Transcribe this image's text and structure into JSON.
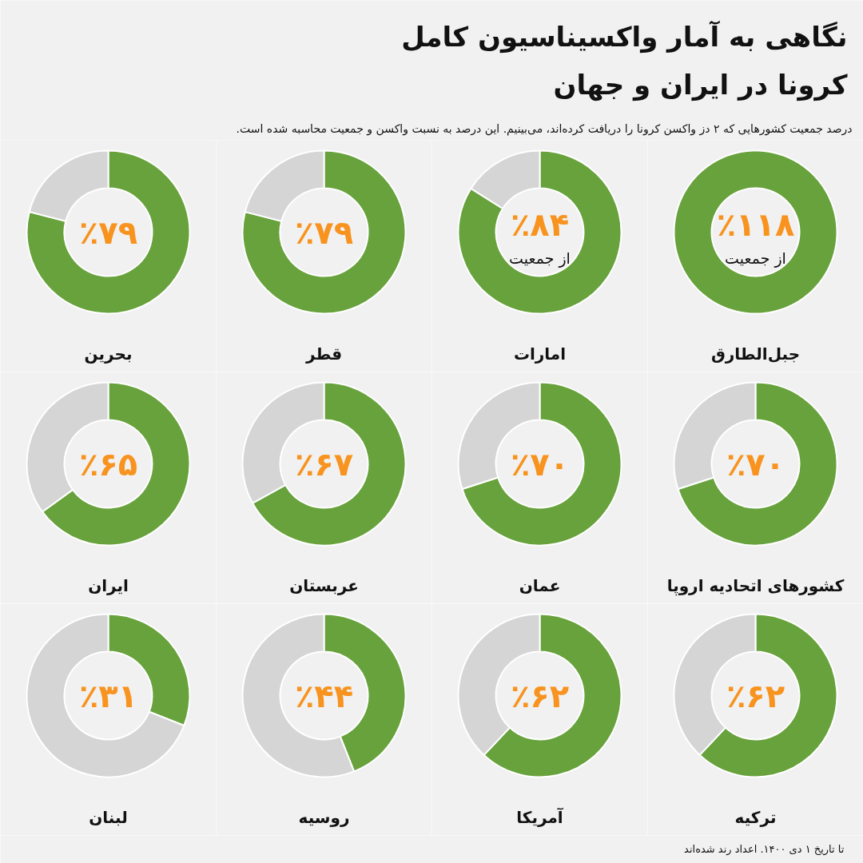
{
  "chart_data": [
    {
      "type": "other",
      "title": "نگاهی به آمار واکسیناسیون کامل\nکرونا در ایران و جهان",
      "subtitle": "درصد جمعیت کشورهایی که ۲ دز واکسن کرونا را دریافت کرده‌اند، می‌بینیم. این درصد به نسبت واکسن و جمعیت محاسبه شده است.",
      "annotations": [
        "تا تاریخ ۱ دی ۱۴۰۰.  اعداد رند شده‌اند"
      ]
    },
    {
      "type": "donut",
      "title": "بحرین",
      "categories": [
        null,
        null
      ],
      "values": [
        79,
        21
      ],
      "colors": [
        "#68a23c",
        "#d5d5d5"
      ],
      "value_labels": [
        "٪۷۹",
        null
      ]
    },
    {
      "type": "donut",
      "title": "قطر",
      "categories": [
        null,
        null
      ],
      "values": [
        79,
        21
      ],
      "colors": [
        "#68a23c",
        "#d5d5d5"
      ],
      "value_labels": [
        "٪۷۹",
        null
      ]
    },
    {
      "type": "donut",
      "title": "امارات",
      "categories": [
        null,
        null
      ],
      "values": [
        84,
        16
      ],
      "colors": [
        "#68a23c",
        "#d5d5d5"
      ],
      "value_labels": [
        "٪۸۴",
        null
      ],
      "annotations": [
        "از جمعیت"
      ]
    },
    {
      "type": "donut",
      "title": "جبل‌الطارق",
      "categories": [
        null
      ],
      "values": [
        118
      ],
      "colors": [
        "#68a23c"
      ],
      "value_labels": [
        "٪۱۱۸"
      ],
      "annotations": [
        "از جمعیت"
      ]
    },
    {
      "type": "donut",
      "title": "ایران",
      "categories": [
        null,
        null
      ],
      "values": [
        65,
        35
      ],
      "colors": [
        "#68a23c",
        "#d5d5d5"
      ],
      "value_labels": [
        "٪۶۵",
        null
      ]
    },
    {
      "type": "donut",
      "title": "عربستان",
      "categories": [
        null,
        null
      ],
      "values": [
        67,
        33
      ],
      "colors": [
        "#68a23c",
        "#d5d5d5"
      ],
      "value_labels": [
        "٪۶۷",
        null
      ]
    },
    {
      "type": "donut",
      "title": "عمان",
      "categories": [
        null,
        null
      ],
      "values": [
        70,
        30
      ],
      "colors": [
        "#68a23c",
        "#d5d5d5"
      ],
      "value_labels": [
        "٪۷۰",
        null
      ]
    },
    {
      "type": "donut",
      "title": "کشورهای اتحادیه اروپا",
      "categories": [
        null,
        null
      ],
      "values": [
        70,
        30
      ],
      "colors": [
        "#68a23c",
        "#d5d5d5"
      ],
      "value_labels": [
        "٪۷۰",
        null
      ]
    },
    {
      "type": "donut",
      "title": "لبنان",
      "categories": [
        null,
        null
      ],
      "values": [
        31,
        69
      ],
      "colors": [
        "#68a23c",
        "#d5d5d5"
      ],
      "value_labels": [
        "٪۳۱",
        null
      ]
    },
    {
      "type": "donut",
      "title": "روسیه",
      "categories": [
        null,
        null
      ],
      "values": [
        44,
        56
      ],
      "colors": [
        "#68a23c",
        "#d5d5d5"
      ],
      "value_labels": [
        "٪۴۴",
        null
      ]
    },
    {
      "type": "donut",
      "title": "آمریکا",
      "categories": [
        null,
        null
      ],
      "values": [
        62,
        38
      ],
      "colors": [
        "#68a23c",
        "#d5d5d5"
      ],
      "value_labels": [
        "٪۶۲",
        null
      ]
    },
    {
      "type": "donut",
      "title": "ترکیه",
      "categories": [
        null,
        null
      ],
      "values": [
        62,
        38
      ],
      "colors": [
        "#68a23c",
        "#d5d5d5"
      ],
      "value_labels": [
        "٪۶۲",
        null
      ]
    }
  ]
}
